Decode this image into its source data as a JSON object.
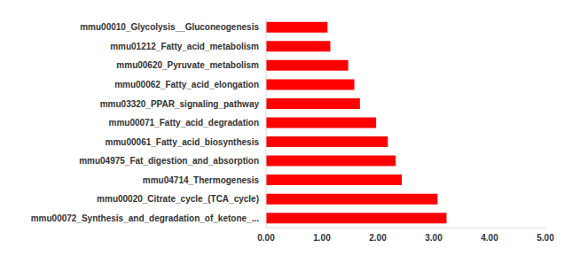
{
  "chart_data": {
    "type": "bar",
    "orientation": "horizontal",
    "categories": [
      "mmu00010_Glycolysis__Gluconeogenesis",
      "mmu01212_Fatty_acid_metabolism",
      "mmu00620_Pyruvate_metabolism",
      "mmu00062_Fatty_acid_elongation",
      "mmu03320_PPAR_signaling_pathway",
      "mmu00071_Fatty_acid_degradation",
      "mmu00061_Fatty_acid_biosynthesis",
      "mmu04975_Fat_digestion_and_absorption",
      "mmu04714_Thermogenesis",
      "mmu00020_Citrate_cycle_(TCA_cycle)",
      "mmu00072_Synthesis_and_degradation_of_ketone_..."
    ],
    "values": [
      1.1,
      1.15,
      1.47,
      1.58,
      1.68,
      1.97,
      2.18,
      2.32,
      2.43,
      3.07,
      3.23
    ],
    "color": "#ff0000",
    "xlim": [
      0,
      5
    ],
    "xticks": [
      {
        "value": 0,
        "label": "0.00"
      },
      {
        "value": 1,
        "label": "1.00"
      },
      {
        "value": 2,
        "label": "2.00"
      },
      {
        "value": 3,
        "label": "3.00"
      },
      {
        "value": 4,
        "label": "4.00"
      },
      {
        "value": 5,
        "label": "5.00"
      }
    ],
    "grid": false
  }
}
